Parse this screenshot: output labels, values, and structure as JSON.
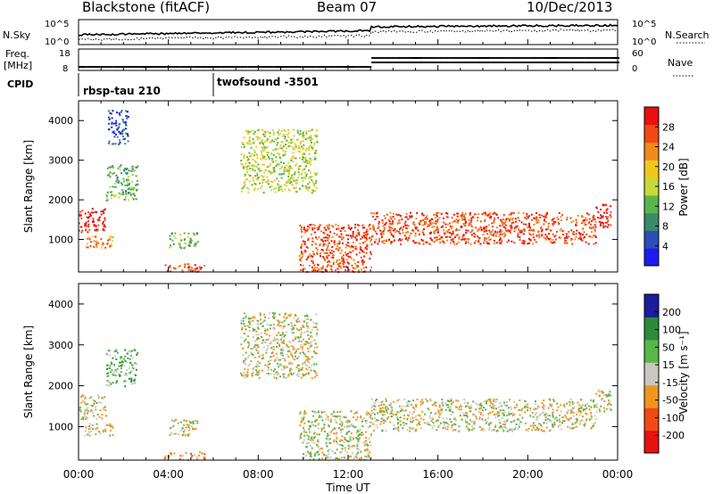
{
  "header": {
    "station": "Blackstone (fitACF)",
    "beam": "Beam 07",
    "date": "10/Dec/2013"
  },
  "strip_labels": {
    "nsky": "N.Sky",
    "nsearch": "N.Search",
    "freq_line1": "Freq.",
    "freq_line2": "[MHz]",
    "nave": "Nave",
    "cpid": "CPID",
    "noise_tick_top": "10^5",
    "noise_tick_bottom": "10^0",
    "freq_tick_top": "18",
    "freq_tick_bottom": "8",
    "nave_tick_top": "60",
    "nave_tick_bottom": "0"
  },
  "cpid_segments": [
    {
      "label": "rbsp-tau 210",
      "start_hour": 0
    },
    {
      "label": "twofsound -3501",
      "start_hour": 6
    }
  ],
  "colors": {
    "power": [
      "#1c1cf0",
      "#2a4fb8",
      "#3a8a6a",
      "#58b64a",
      "#c8d838",
      "#f0c81c",
      "#f08a1c",
      "#f04a14",
      "#e81010"
    ],
    "velocity": [
      "#e81010",
      "#f04a14",
      "#f0961c",
      "#c8c8c0",
      "#58b64a",
      "#2c8a3a",
      "#1c1c9c"
    ],
    "axis": "#000000"
  },
  "chart_data": [
    {
      "type": "heatmap",
      "title": "Power",
      "xlabel": "Time UT",
      "ylabel": "Slant Range [km]",
      "xlim": [
        0,
        24
      ],
      "ylim": [
        180,
        4500
      ],
      "x_ticks": [
        "00:00",
        "04:00",
        "08:00",
        "12:00",
        "16:00",
        "20:00",
        "00:00"
      ],
      "y_ticks": [
        "1000",
        "2000",
        "3000",
        "4000"
      ],
      "colorbar_label": "Power [dB]",
      "colorbar_ticks": [
        "4",
        "8",
        "12",
        "16",
        "20",
        "24",
        "28"
      ],
      "regions": [
        {
          "t": [
            0.0,
            1.2
          ],
          "r": [
            1200,
            1800
          ],
          "level": 8
        },
        {
          "t": [
            0.2,
            1.5
          ],
          "r": [
            800,
            1100
          ],
          "level": 6
        },
        {
          "t": [
            1.2,
            2.6
          ],
          "r": [
            2000,
            2900
          ],
          "level": 3
        },
        {
          "t": [
            1.3,
            2.2
          ],
          "r": [
            3400,
            4300
          ],
          "level": 1
        },
        {
          "t": [
            4.0,
            5.3
          ],
          "r": [
            800,
            1200
          ],
          "level": 3
        },
        {
          "t": [
            3.8,
            5.6
          ],
          "r": [
            200,
            400
          ],
          "level": 7
        },
        {
          "t": [
            7.2,
            10.6
          ],
          "r": [
            2200,
            3800
          ],
          "level": 4
        },
        {
          "t": [
            9.8,
            13.0
          ],
          "r": [
            200,
            1400
          ],
          "level": 7
        },
        {
          "t": [
            13.0,
            23.0
          ],
          "r": [
            900,
            1700
          ],
          "level": 7
        },
        {
          "t": [
            23.0,
            23.7
          ],
          "r": [
            1300,
            1900
          ],
          "level": 8
        }
      ]
    },
    {
      "type": "heatmap",
      "title": "Velocity",
      "xlabel": "Time UT",
      "ylabel": "Slant Range [km]",
      "xlim": [
        0,
        24
      ],
      "ylim": [
        180,
        4500
      ],
      "x_ticks": [
        "00:00",
        "04:00",
        "08:00",
        "12:00",
        "16:00",
        "20:00",
        "00:00"
      ],
      "y_ticks": [
        "1000",
        "2000",
        "3000",
        "4000"
      ],
      "colorbar_label": "Velocity [m s⁻¹]",
      "colorbar_ticks": [
        "-200",
        "-100",
        "-50",
        "-15",
        "15",
        "50",
        "100",
        "200"
      ],
      "regions": [
        {
          "t": [
            0.0,
            1.2
          ],
          "r": [
            1200,
            1800
          ],
          "level": 3
        },
        {
          "t": [
            0.2,
            1.5
          ],
          "r": [
            800,
            1100
          ],
          "level": 3
        },
        {
          "t": [
            1.2,
            2.6
          ],
          "r": [
            2000,
            2900
          ],
          "level": 4
        },
        {
          "t": [
            4.0,
            5.3
          ],
          "r": [
            800,
            1200
          ],
          "level": 3
        },
        {
          "t": [
            3.8,
            5.6
          ],
          "r": [
            200,
            400
          ],
          "level": 2
        },
        {
          "t": [
            7.2,
            10.6
          ],
          "r": [
            2200,
            3800
          ],
          "level": 3
        },
        {
          "t": [
            9.8,
            13.0
          ],
          "r": [
            200,
            1400
          ],
          "level": 3
        },
        {
          "t": [
            13.0,
            23.0
          ],
          "r": [
            900,
            1700
          ],
          "level": 3
        },
        {
          "t": [
            23.0,
            23.7
          ],
          "r": [
            1300,
            1900
          ],
          "level": 3
        }
      ]
    }
  ]
}
